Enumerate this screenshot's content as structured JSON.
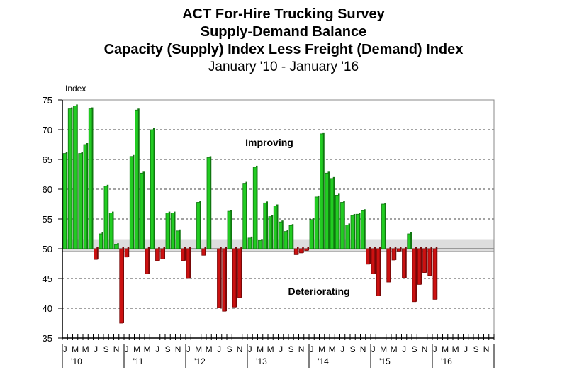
{
  "chart_data": {
    "type": "bar",
    "title": [
      "ACT For-Hire Trucking Survey",
      "Supply-Demand Balance",
      "Capacity (Supply) Index Less Freight (Demand) Index"
    ],
    "subtitle": "January '10 - January '16",
    "ylabel": "Index",
    "ylim": [
      35,
      75
    ],
    "yticks": [
      35,
      40,
      45,
      50,
      55,
      60,
      65,
      70,
      75
    ],
    "baseline": 50,
    "neutral_band": [
      49.5,
      51.5
    ],
    "month_labels": [
      "J",
      "",
      "M",
      "",
      "M",
      "",
      "J",
      "",
      "S",
      "",
      "N",
      ""
    ],
    "years": [
      "'10",
      "'11",
      "'12",
      "'13",
      "'14",
      "'15",
      "'16"
    ],
    "annotations": {
      "above": "Improving",
      "below": "Deteriorating"
    },
    "colors": {
      "above": "#22cc22",
      "below": "#cc1111",
      "band": "#dddddd"
    },
    "start": "January 2010",
    "values": [
      66,
      73.5,
      74,
      66,
      67.5,
      73.5,
      48.2,
      52.5,
      60.5,
      56,
      50.7,
      37.5,
      48.6,
      65.5,
      73.3,
      62.7,
      45.8,
      70,
      48,
      48.3,
      56,
      56,
      53,
      48,
      45,
      50,
      57.8,
      48.9,
      65.3,
      50,
      40.1,
      39.5,
      56.3,
      40.2,
      41.8,
      61,
      51.8,
      63.7,
      51.4,
      57.7,
      55.4,
      57.2,
      54.5,
      52.9,
      53.9,
      49,
      49.3,
      49.7,
      54.9,
      58.7,
      69.3,
      62.7,
      61.8,
      59,
      57.8,
      54,
      55.6,
      55.8,
      56.4,
      47.4,
      45.8,
      42.1,
      57.5,
      44.4,
      48.1,
      49.6,
      45.1,
      52.5,
      41.1,
      44,
      46,
      45.5,
      41.5
    ]
  }
}
